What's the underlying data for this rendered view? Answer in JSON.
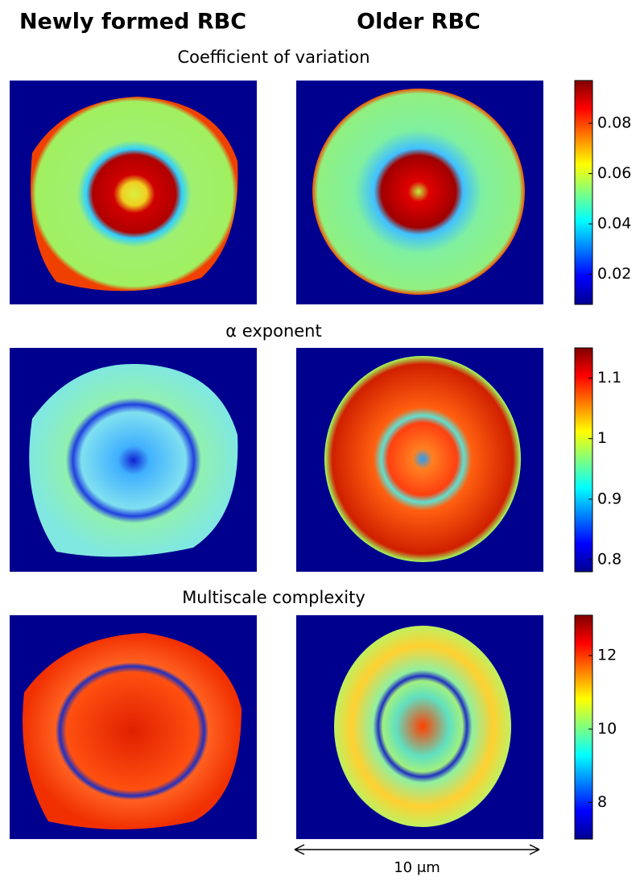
{
  "column_titles": [
    "Newly formed RBC",
    "Older RBC"
  ],
  "panels": [
    {
      "title": "Coefficient of variation",
      "colorbar": {
        "lim": [
          0.008,
          0.097
        ],
        "ticks": [
          0.02,
          0.04,
          0.06,
          0.08
        ]
      }
    },
    {
      "title": "α exponent",
      "colorbar": {
        "lim": [
          0.78,
          1.15
        ],
        "ticks": [
          0.8,
          0.9,
          1,
          1.1
        ]
      }
    },
    {
      "title": "Multiscale complexity",
      "colorbar": {
        "lim": [
          7,
          13.1
        ],
        "ticks": [
          8,
          10,
          12
        ]
      }
    }
  ],
  "scale_bar": "10 μm"
}
